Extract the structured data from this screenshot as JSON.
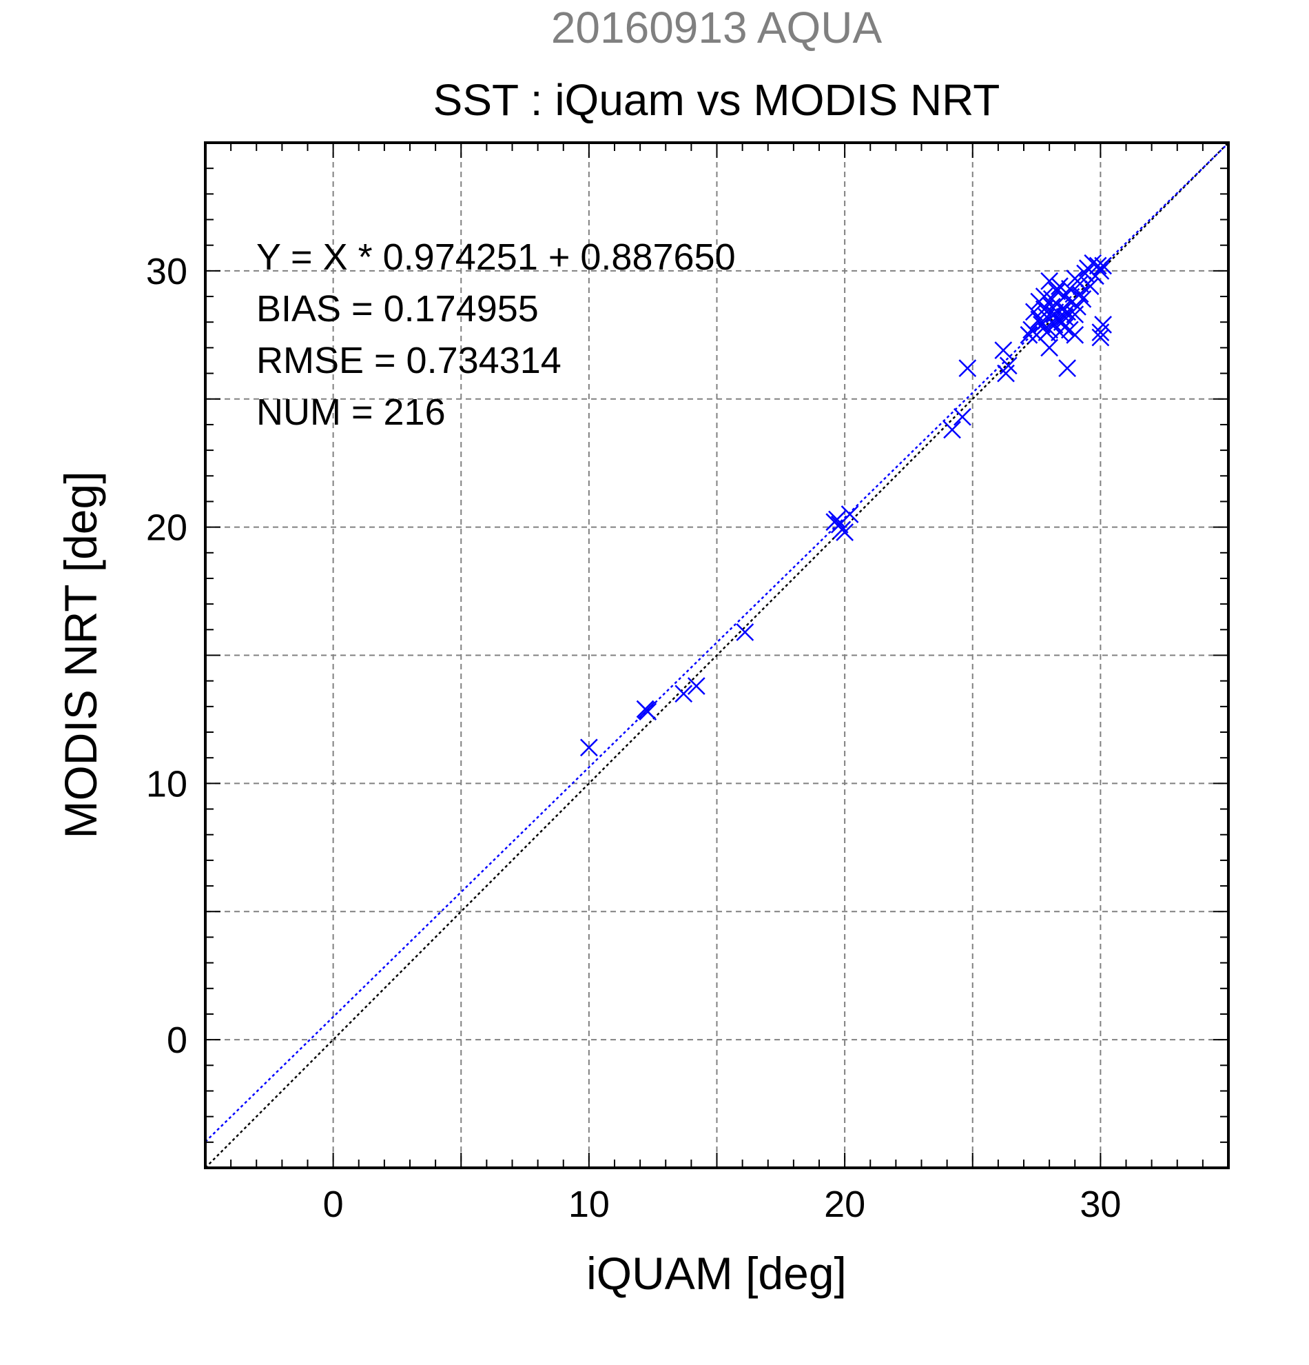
{
  "chart_data": {
    "type": "scatter",
    "supertitle": "20160913 AQUA",
    "title": "SST : iQuam vs MODIS NRT",
    "xlabel": "iQUAM [deg]",
    "ylabel": "MODIS NRT [deg]",
    "xlim": [
      -5,
      35
    ],
    "ylim": [
      -5,
      35
    ],
    "xticks": [
      0,
      10,
      20,
      30
    ],
    "yticks": [
      0,
      10,
      20,
      30
    ],
    "grid": true,
    "grid_step": 5,
    "minor_tick_step": 1,
    "colors": {
      "points": "#0000ff",
      "fit": "#0000ff",
      "identity": "#000000",
      "supertitle": "#808080",
      "grid": "#808080"
    },
    "stats": {
      "equation": "Y = X * 0.974251 + 0.887650",
      "bias": "BIAS = 0.174955",
      "rmse": "RMSE = 0.734314",
      "num": "NUM = 216"
    },
    "fit": {
      "slope": 0.974251,
      "intercept": 0.88765
    },
    "series": [
      {
        "marker": "x",
        "points": [
          [
            10.0,
            11.4
          ],
          [
            12.2,
            12.9
          ],
          [
            12.3,
            12.8
          ],
          [
            12.25,
            12.85
          ],
          [
            13.7,
            13.5
          ],
          [
            14.2,
            13.8
          ],
          [
            16.1,
            15.9
          ],
          [
            19.6,
            20.2
          ],
          [
            19.7,
            20.3
          ],
          [
            19.8,
            20.1
          ],
          [
            19.9,
            19.9
          ],
          [
            20.0,
            19.8
          ],
          [
            20.2,
            20.5
          ],
          [
            24.2,
            23.8
          ],
          [
            24.6,
            24.3
          ],
          [
            24.8,
            26.2
          ],
          [
            26.2,
            26.9
          ],
          [
            26.3,
            26.0
          ],
          [
            26.4,
            26.3
          ],
          [
            27.3,
            27.7
          ],
          [
            27.4,
            28.4
          ],
          [
            27.5,
            27.5
          ],
          [
            27.6,
            28.1
          ],
          [
            27.6,
            28.8
          ],
          [
            27.7,
            27.9
          ],
          [
            27.8,
            28.5
          ],
          [
            27.8,
            29.0
          ],
          [
            27.9,
            28.2
          ],
          [
            28.0,
            27.0
          ],
          [
            28.0,
            27.7
          ],
          [
            28.0,
            29.6
          ],
          [
            28.1,
            28.6
          ],
          [
            28.1,
            28.9
          ],
          [
            28.2,
            28.3
          ],
          [
            28.2,
            27.9
          ],
          [
            28.3,
            29.2
          ],
          [
            28.3,
            28.7
          ],
          [
            28.4,
            27.6
          ],
          [
            28.4,
            29.4
          ],
          [
            28.5,
            28.5
          ],
          [
            28.5,
            28.0
          ],
          [
            28.6,
            29.0
          ],
          [
            28.6,
            27.8
          ],
          [
            28.7,
            26.2
          ],
          [
            28.7,
            28.4
          ],
          [
            28.8,
            29.3
          ],
          [
            28.8,
            27.7
          ],
          [
            28.9,
            28.8
          ],
          [
            29.0,
            29.7
          ],
          [
            29.0,
            27.5
          ],
          [
            29.1,
            28.6
          ],
          [
            29.2,
            29.1
          ],
          [
            29.2,
            29.5
          ],
          [
            29.3,
            28.9
          ],
          [
            29.4,
            29.9
          ],
          [
            29.5,
            30.1
          ],
          [
            29.6,
            29.4
          ],
          [
            29.7,
            30.3
          ],
          [
            29.8,
            29.8
          ],
          [
            29.9,
            30.2
          ],
          [
            30.0,
            30.0
          ],
          [
            30.1,
            30.2
          ],
          [
            30.0,
            27.6
          ],
          [
            30.0,
            27.4
          ],
          [
            30.1,
            27.9
          ],
          [
            27.2,
            27.5
          ],
          [
            28.1,
            28.0
          ],
          [
            28.6,
            28.2
          ],
          [
            29.0,
            28.3
          ],
          [
            28.3,
            28.1
          ],
          [
            27.9,
            27.6
          ]
        ]
      }
    ]
  }
}
